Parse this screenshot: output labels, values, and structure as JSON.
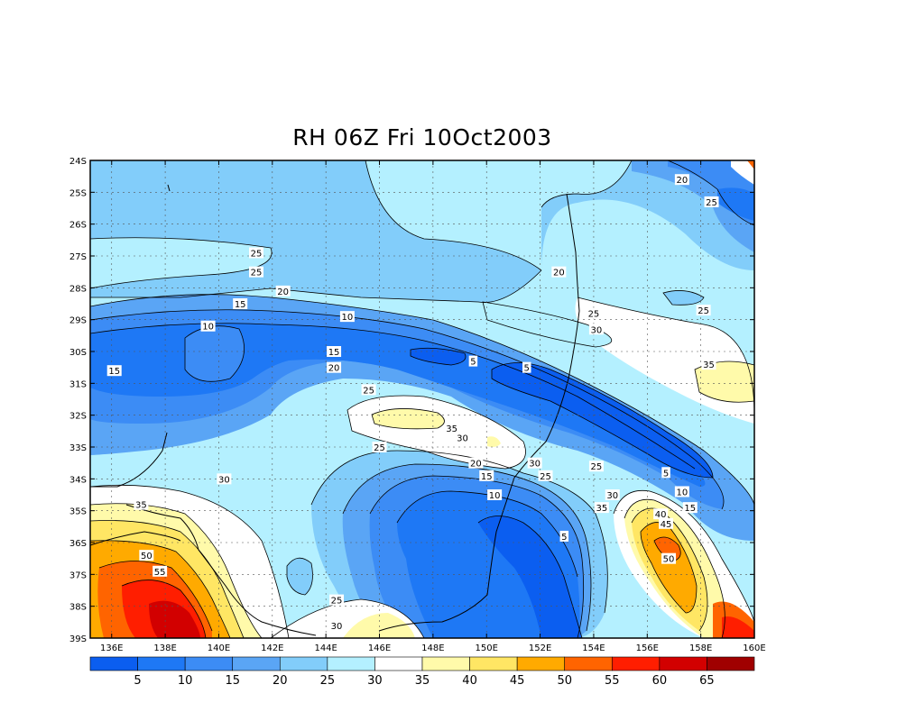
{
  "title": "RH 06Z Fri 10Oct2003",
  "lat_labels": [
    "24S",
    "25S",
    "26S",
    "27S",
    "28S",
    "29S",
    "30S",
    "31S",
    "32S",
    "33S",
    "34S",
    "35S",
    "36S",
    "37S",
    "38S",
    "39S"
  ],
  "lon_labels": [
    "136E",
    "138E",
    "140E",
    "142E",
    "144E",
    "146E",
    "148E",
    "150E",
    "152E",
    "154E",
    "156E",
    "158E",
    "160E"
  ],
  "colorbar": {
    "labels": [
      "5",
      "10",
      "15",
      "20",
      "25",
      "30",
      "35",
      "40",
      "45",
      "50",
      "55",
      "60",
      "65"
    ],
    "colors": [
      "#0b5ef0",
      "#1e78f5",
      "#3c8cf5",
      "#5aa5f5",
      "#82cdfa",
      "#b4f0ff",
      "#ffffff",
      "#fffaaa",
      "#ffe664",
      "#ffaa00",
      "#ff6400",
      "#ff1e00",
      "#d20000",
      "#a00000"
    ]
  },
  "contour_labels": [
    {
      "text": "20",
      "lon": 157.3,
      "lat": -24.6
    },
    {
      "text": "25",
      "lon": 158.4,
      "lat": -25.3
    },
    {
      "text": "25",
      "lon": 141.4,
      "lat": -26.9
    },
    {
      "text": "25",
      "lon": 141.4,
      "lat": -27.5
    },
    {
      "text": "20",
      "lon": 142.4,
      "lat": -28.1
    },
    {
      "text": "20",
      "lon": 152.7,
      "lat": -27.5
    },
    {
      "text": "15",
      "lon": 140.8,
      "lat": -28.5
    },
    {
      "text": "10",
      "lon": 144.8,
      "lat": -28.9
    },
    {
      "text": "10",
      "lon": 139.6,
      "lat": -29.2
    },
    {
      "text": "25",
      "lon": 154.0,
      "lat": -28.8
    },
    {
      "text": "25",
      "lon": 158.1,
      "lat": -28.7
    },
    {
      "text": "30",
      "lon": 154.1,
      "lat": -29.3
    },
    {
      "text": "15",
      "lon": 144.3,
      "lat": -30.0
    },
    {
      "text": "20",
      "lon": 144.3,
      "lat": -30.5
    },
    {
      "text": "15",
      "lon": 136.1,
      "lat": -30.6
    },
    {
      "text": "5",
      "lon": 149.5,
      "lat": -30.3
    },
    {
      "text": "5",
      "lon": 151.5,
      "lat": -30.5
    },
    {
      "text": "35",
      "lon": 158.3,
      "lat": -30.4
    },
    {
      "text": "25",
      "lon": 145.6,
      "lat": -31.2
    },
    {
      "text": "35",
      "lon": 148.7,
      "lat": -32.4
    },
    {
      "text": "30",
      "lon": 149.1,
      "lat": -32.7
    },
    {
      "text": "25",
      "lon": 146.0,
      "lat": -33.0
    },
    {
      "text": "20",
      "lon": 149.6,
      "lat": -33.5
    },
    {
      "text": "15",
      "lon": 150.0,
      "lat": -33.9
    },
    {
      "text": "10",
      "lon": 150.3,
      "lat": -34.5
    },
    {
      "text": "30",
      "lon": 151.8,
      "lat": -33.5
    },
    {
      "text": "25",
      "lon": 152.2,
      "lat": -33.9
    },
    {
      "text": "25",
      "lon": 154.1,
      "lat": -33.6
    },
    {
      "text": "5",
      "lon": 156.7,
      "lat": -33.8
    },
    {
      "text": "10",
      "lon": 157.3,
      "lat": -34.4
    },
    {
      "text": "15",
      "lon": 157.6,
      "lat": -34.9
    },
    {
      "text": "30",
      "lon": 154.7,
      "lat": -34.5
    },
    {
      "text": "35",
      "lon": 154.3,
      "lat": -34.9
    },
    {
      "text": "40",
      "lon": 156.5,
      "lat": -35.1
    },
    {
      "text": "45",
      "lon": 156.7,
      "lat": -35.4
    },
    {
      "text": "30",
      "lon": 140.2,
      "lat": -34.0
    },
    {
      "text": "35",
      "lon": 137.1,
      "lat": -34.8
    },
    {
      "text": "5",
      "lon": 152.9,
      "lat": -35.8
    },
    {
      "text": "50",
      "lon": 137.3,
      "lat": -36.4
    },
    {
      "text": "50",
      "lon": 156.8,
      "lat": -36.5
    },
    {
      "text": "55",
      "lon": 137.8,
      "lat": -36.9
    },
    {
      "text": "25",
      "lon": 144.4,
      "lat": -37.8
    },
    {
      "text": "30",
      "lon": 144.4,
      "lat": -38.6
    }
  ]
}
